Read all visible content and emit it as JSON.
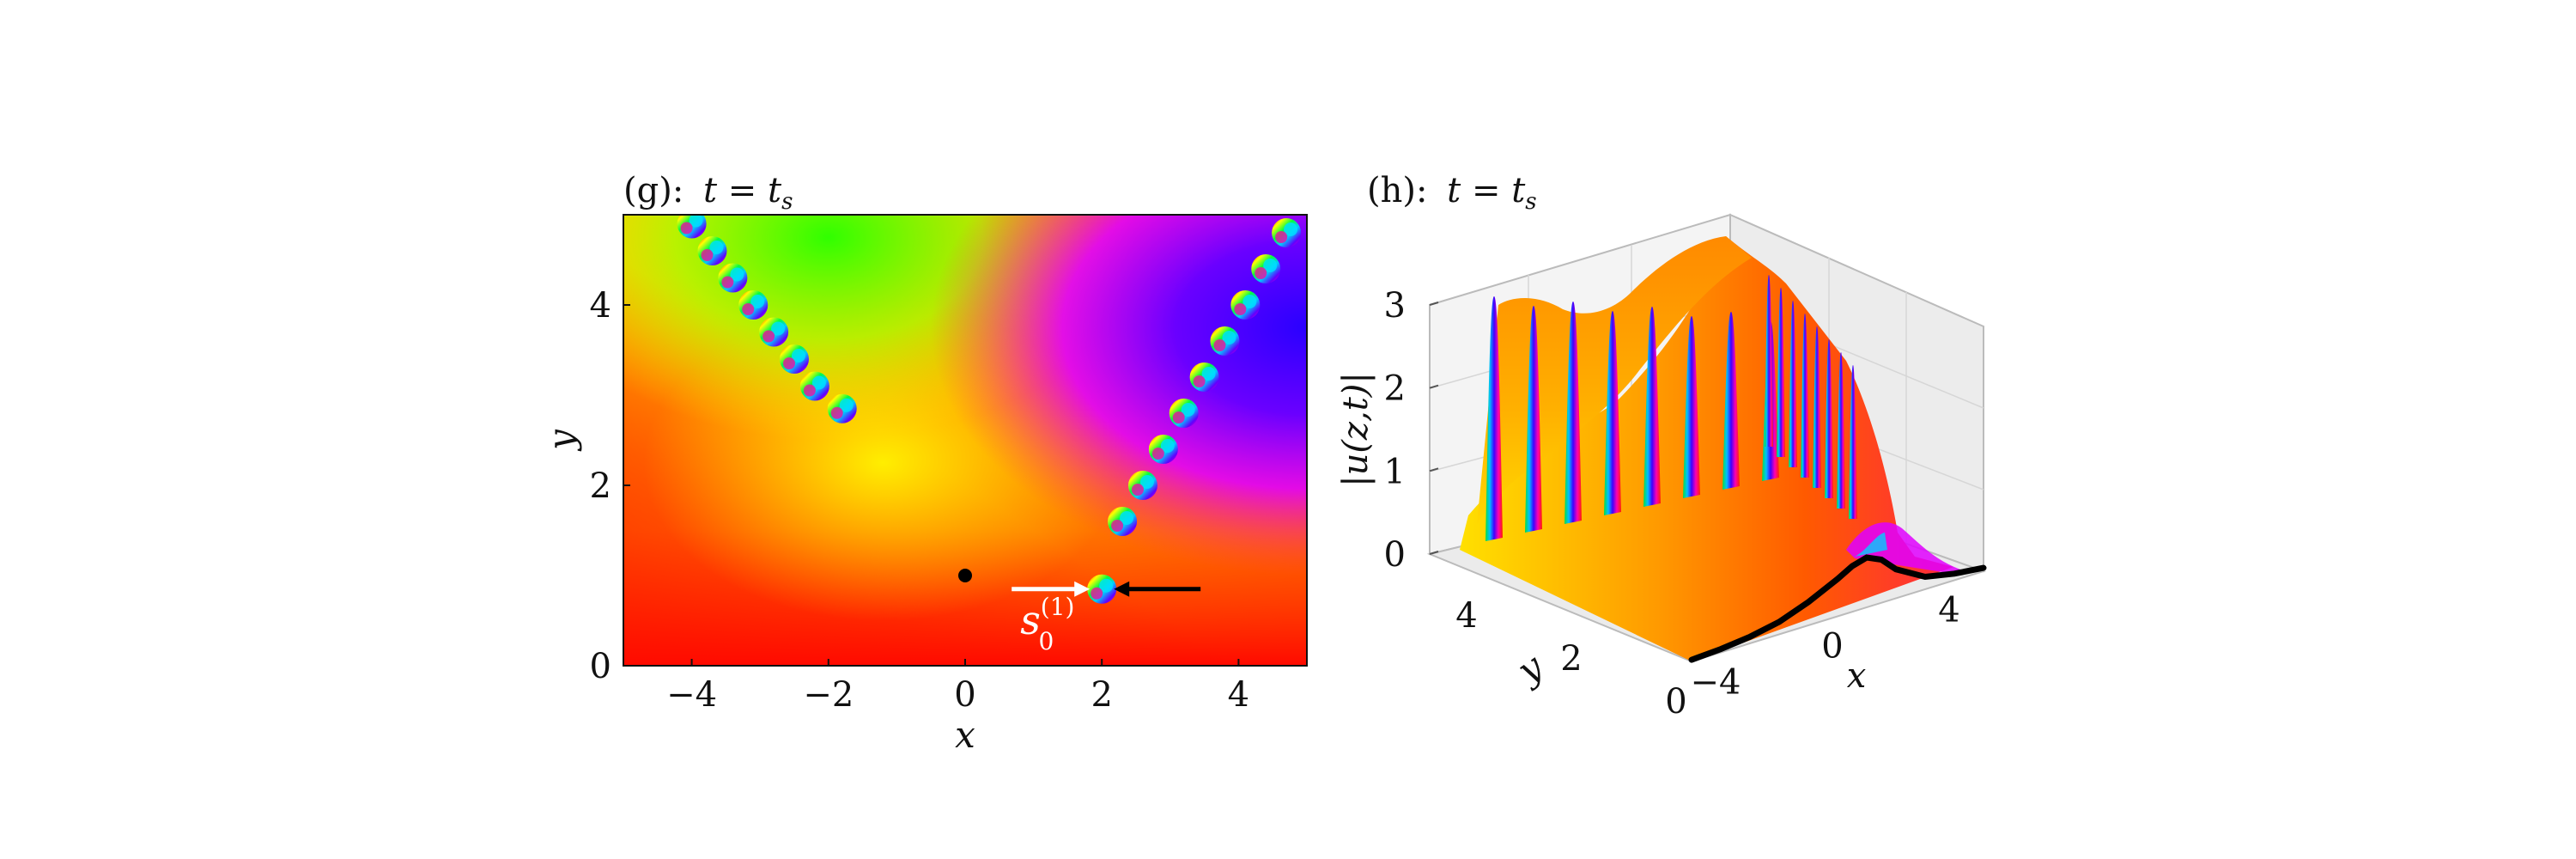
{
  "figure": {
    "panels": [
      {
        "id": "g",
        "title": "(g): t = t_s",
        "title_prefix": "(g):",
        "title_math": "t = t",
        "title_sub": "s",
        "xlabel": "x",
        "ylabel": "y",
        "xticks": [
          "−4",
          "−2",
          "0",
          "2",
          "4"
        ],
        "yticks": [
          "0",
          "2",
          "4"
        ],
        "annotation_label": "s",
        "annotation_sup": "(1)",
        "annotation_sub": "0",
        "colors": {
          "white_arrow": "#ffffff",
          "black_arrow": "#000000",
          "dot": "#000000"
        }
      },
      {
        "id": "h",
        "title": "(h): t = t_s",
        "title_prefix": "(h):",
        "title_math": "t = t",
        "title_sub": "s",
        "xlabel": "x",
        "ylabel": "y",
        "zlabel": "|u(z,t)|",
        "xticks": [
          "−4",
          "0",
          "4"
        ],
        "yticks": [
          "4",
          "2",
          "0"
        ],
        "zticks": [
          "0",
          "1",
          "2",
          "3"
        ]
      }
    ]
  },
  "chart_data": [
    {
      "type": "heatmap",
      "title": "(g): t = t_s",
      "description_of_values": "phase of u(z,t) shown as hue",
      "xlabel": "x",
      "ylabel": "y",
      "xlim": [
        -5,
        5
      ],
      "ylim": [
        0,
        5
      ],
      "xticks": [
        -4,
        -2,
        0,
        2,
        4
      ],
      "yticks": [
        0,
        2,
        4
      ],
      "marked_point": [
        0,
        1
      ],
      "labeled_zero": {
        "label": "s_0^(1)",
        "x": 2,
        "y": 0.85
      },
      "zero_chain_left": [
        [
          -4,
          4.9
        ],
        [
          -3.7,
          4.6
        ],
        [
          -3.4,
          4.3
        ],
        [
          -3.1,
          4.0
        ],
        [
          -2.8,
          3.7
        ],
        [
          -2.5,
          3.4
        ],
        [
          -2.2,
          3.1
        ],
        [
          -1.8,
          2.85
        ]
      ],
      "zero_chain_right": [
        [
          2.0,
          0.85
        ],
        [
          2.3,
          1.6
        ],
        [
          2.6,
          2.0
        ],
        [
          2.9,
          2.4
        ],
        [
          3.2,
          2.8
        ],
        [
          3.5,
          3.2
        ],
        [
          3.8,
          3.6
        ],
        [
          4.1,
          4.0
        ],
        [
          4.4,
          4.4
        ],
        [
          4.7,
          4.8
        ]
      ],
      "grid": false
    },
    {
      "type": "surface",
      "title": "(h): t = t_s",
      "xlabel": "x",
      "ylabel": "y",
      "zlabel": "|u(z,t)|",
      "xlim": [
        -5,
        5
      ],
      "ylim": [
        0,
        5
      ],
      "zlim": [
        0,
        3
      ],
      "xticks": [
        -4,
        0,
        4
      ],
      "yticks": [
        0,
        2,
        4
      ],
      "zticks": [
        0,
        1,
        2,
        3
      ],
      "boundary_curve_y0": {
        "x": [
          -5,
          -4,
          -3,
          -2,
          -1,
          0,
          0.5,
          1,
          1.5,
          2,
          3,
          4,
          5
        ],
        "z": [
          0.02,
          0.04,
          0.08,
          0.15,
          0.28,
          0.45,
          0.55,
          0.6,
          0.52,
          0.35,
          0.15,
          0.08,
          0.04
        ]
      },
      "grid": true
    }
  ]
}
